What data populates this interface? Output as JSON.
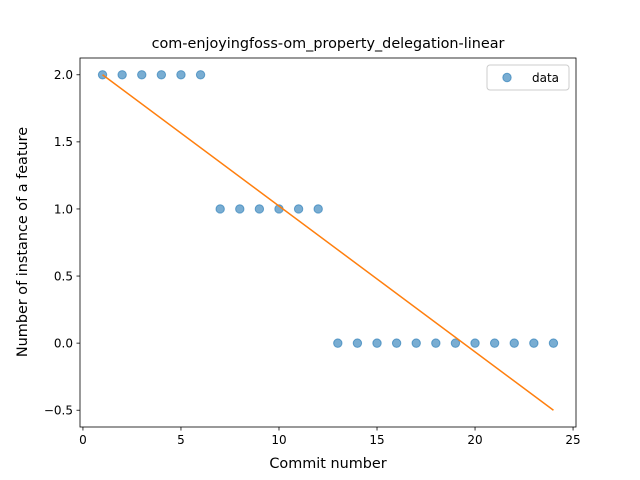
{
  "chart_data": {
    "type": "scatter",
    "title": "com-enjoyingfoss-om_property_delegation-linear",
    "xlabel": "Commit number",
    "ylabel": "Number of instance of a feature",
    "xlim": [
      -0.15,
      25.15
    ],
    "ylim": [
      -0.625,
      2.125
    ],
    "xticks": [
      0,
      5,
      10,
      15,
      20,
      25
    ],
    "xtick_labels": [
      "0",
      "5",
      "10",
      "15",
      "20",
      "25"
    ],
    "yticks": [
      -0.5,
      0.0,
      0.5,
      1.0,
      1.5,
      2.0
    ],
    "ytick_labels": [
      "−0.5",
      "0.0",
      "0.5",
      "1.0",
      "1.5",
      "2.0"
    ],
    "grid": false,
    "legend_position": "top-right",
    "series": [
      {
        "name": "data",
        "kind": "scatter",
        "color": "#1f77b4",
        "x": [
          1,
          2,
          3,
          4,
          5,
          6,
          7,
          8,
          9,
          10,
          11,
          12,
          13,
          14,
          15,
          16,
          17,
          18,
          19,
          20,
          21,
          22,
          23,
          24
        ],
        "y": [
          2,
          2,
          2,
          2,
          2,
          2,
          1,
          1,
          1,
          1,
          1,
          1,
          0,
          0,
          0,
          0,
          0,
          0,
          0,
          0,
          0,
          0,
          0,
          0
        ]
      },
      {
        "kind": "line",
        "color": "#ff7f0e",
        "x": [
          1,
          24
        ],
        "y": [
          2.0,
          -0.5
        ]
      }
    ]
  }
}
